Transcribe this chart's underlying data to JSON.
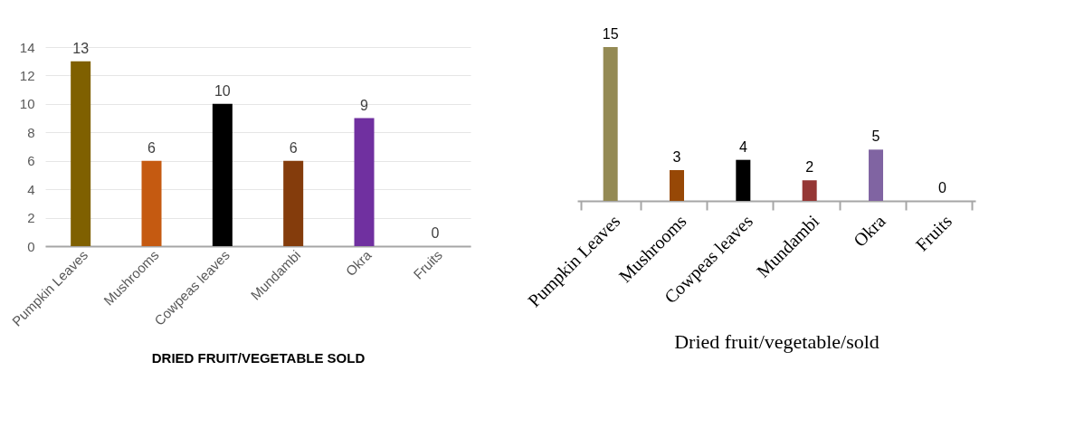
{
  "chart_data": [
    {
      "type": "bar",
      "categories": [
        "Pumpkin Leaves",
        "Mushrooms",
        "Cowpeas leaves",
        "Mundambi",
        "Okra",
        "Fruits"
      ],
      "values": [
        13,
        6,
        10,
        6,
        9,
        0
      ],
      "colors": [
        "#7f6000",
        "#c55a11",
        "#000000",
        "#843c0c",
        "#7030a0",
        "#a5a5a5"
      ],
      "xlabel": "DRIED FRUIT/VEGETABLE SOLD",
      "ylim": [
        0,
        14
      ],
      "yticks": [
        0,
        2,
        4,
        6,
        8,
        10,
        12,
        14
      ],
      "grid": "y",
      "data_labels": true
    },
    {
      "type": "bar",
      "categories": [
        "Pumpkin Leaves",
        "Mushrooms",
        "Cowpeas leaves",
        "Mundambi",
        "Okra",
        "Fruits"
      ],
      "values": [
        15,
        3,
        4,
        2,
        5,
        0
      ],
      "colors": [
        "#948a54",
        "#974806",
        "#000000",
        "#953735",
        "#8064a2",
        "#4bacc6"
      ],
      "xlabel": "Dried fruit/vegetable/sold",
      "tick_labels": "x",
      "data_labels": true
    }
  ]
}
